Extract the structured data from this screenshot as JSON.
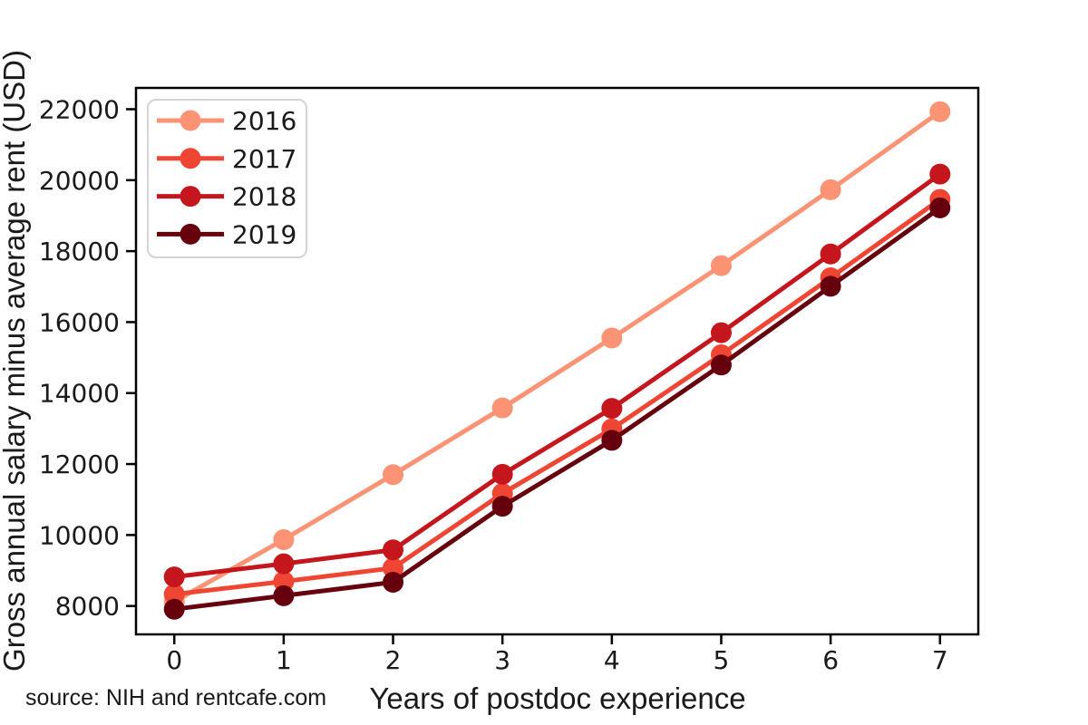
{
  "chart_data": {
    "type": "line",
    "xlabel": "Years of postdoc experience",
    "ylabel": "Gross annual salary minus average rent (USD)",
    "source_note": "source: NIH and rentcafe.com",
    "x": [
      0,
      1,
      2,
      3,
      4,
      5,
      6,
      7
    ],
    "xticks": [
      0,
      1,
      2,
      3,
      4,
      5,
      6,
      7
    ],
    "yticks": [
      8000,
      10000,
      12000,
      14000,
      16000,
      18000,
      20000,
      22000
    ],
    "xlim": [
      -0.35,
      7.35
    ],
    "ylim": [
      7200,
      22600
    ],
    "grid": false,
    "legend_position": "upper-left",
    "marker": "circle",
    "series": [
      {
        "name": "2016",
        "color": "#fb9374",
        "values": [
          8120,
          9870,
          11700,
          13580,
          15550,
          17590,
          19730,
          21930
        ]
      },
      {
        "name": "2017",
        "color": "#ef4633",
        "values": [
          8330,
          8690,
          9070,
          11170,
          12990,
          15080,
          17250,
          19460
        ]
      },
      {
        "name": "2018",
        "color": "#c4161c",
        "values": [
          8820,
          9190,
          9580,
          11710,
          13570,
          15700,
          17920,
          20170
        ]
      },
      {
        "name": "2019",
        "color": "#67000d",
        "values": [
          7910,
          8290,
          8670,
          10810,
          12670,
          14790,
          17010,
          19220
        ]
      }
    ]
  }
}
